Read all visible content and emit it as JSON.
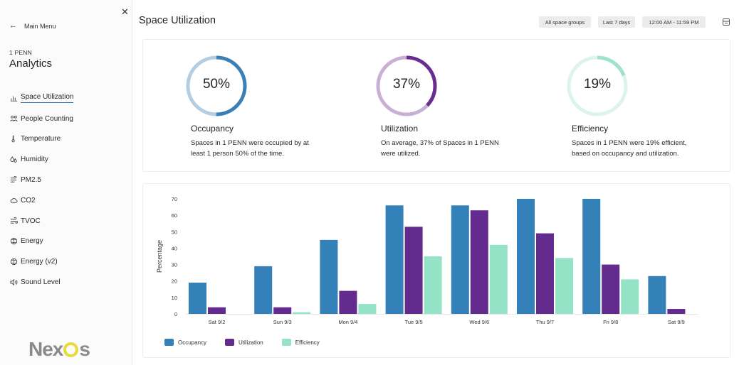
{
  "sidebar": {
    "main_menu": "Main Menu",
    "building": "1 PENN",
    "section": "Analytics",
    "items": [
      {
        "label": "Space Utilization",
        "icon": "chart-icon",
        "active": true
      },
      {
        "label": "People Counting",
        "icon": "people-icon"
      },
      {
        "label": "Temperature",
        "icon": "thermometer-icon"
      },
      {
        "label": "Humidity",
        "icon": "humidity-icon"
      },
      {
        "label": "PM2.5",
        "icon": "air-icon"
      },
      {
        "label": "CO2",
        "icon": "cloud-icon"
      },
      {
        "label": "TVOC",
        "icon": "wind-icon"
      },
      {
        "label": "Energy",
        "icon": "energy-icon"
      },
      {
        "label": "Energy (v2)",
        "icon": "energy-icon"
      },
      {
        "label": "Sound Level",
        "icon": "speaker-icon"
      }
    ],
    "logo": {
      "part1": "Nex",
      "part2": "s",
      "accent": "#e8da3b"
    }
  },
  "header": {
    "title": "Space Utilization",
    "filters": [
      "All space groups",
      "Last 7 days",
      "12:00 AM - 11:59 PM"
    ]
  },
  "stats": [
    {
      "value": "50%",
      "fraction": 0.5,
      "title": "Occupancy",
      "desc": "Spaces in 1 PENN were occupied by at least 1 person 50% of the time.",
      "color": "#3a80b8",
      "track": "#b3cde3"
    },
    {
      "value": "37%",
      "fraction": 0.37,
      "title": "Utilization",
      "desc": "On average, 37% of Spaces in 1 PENN were utilized.",
      "color": "#6a2c91",
      "track": "#c6b0d6"
    },
    {
      "value": "19%",
      "fraction": 0.19,
      "title": "Efficiency",
      "desc": "Spaces in 1 PENN were 19% efficient, based on occupancy and utilization.",
      "color": "#9ee4c8",
      "track": "#dcf4ea"
    }
  ],
  "chart_data": {
    "type": "bar",
    "ylabel": "Percentage",
    "ylim": [
      0,
      70
    ],
    "yticks": [
      0,
      10,
      20,
      30,
      40,
      50,
      60,
      70
    ],
    "categories": [
      "Sat 9/2",
      "Sun 9/3",
      "Mon 9/4",
      "Tue 9/5",
      "Wed 9/6",
      "Thu 9/7",
      "Fri 9/8",
      "Sat 9/9"
    ],
    "series": [
      {
        "name": "Occupancy",
        "color": "#3381b8",
        "values": [
          19,
          29,
          45,
          66,
          66,
          70,
          70,
          23
        ]
      },
      {
        "name": "Utilization",
        "color": "#642b8e",
        "values": [
          4,
          4,
          14,
          53,
          63,
          49,
          30,
          3
        ]
      },
      {
        "name": "Efficiency",
        "color": "#95e3c6",
        "values": [
          0,
          1,
          6,
          35,
          42,
          34,
          21,
          0
        ]
      }
    ],
    "legend": "bottom-left",
    "grid": false
  }
}
